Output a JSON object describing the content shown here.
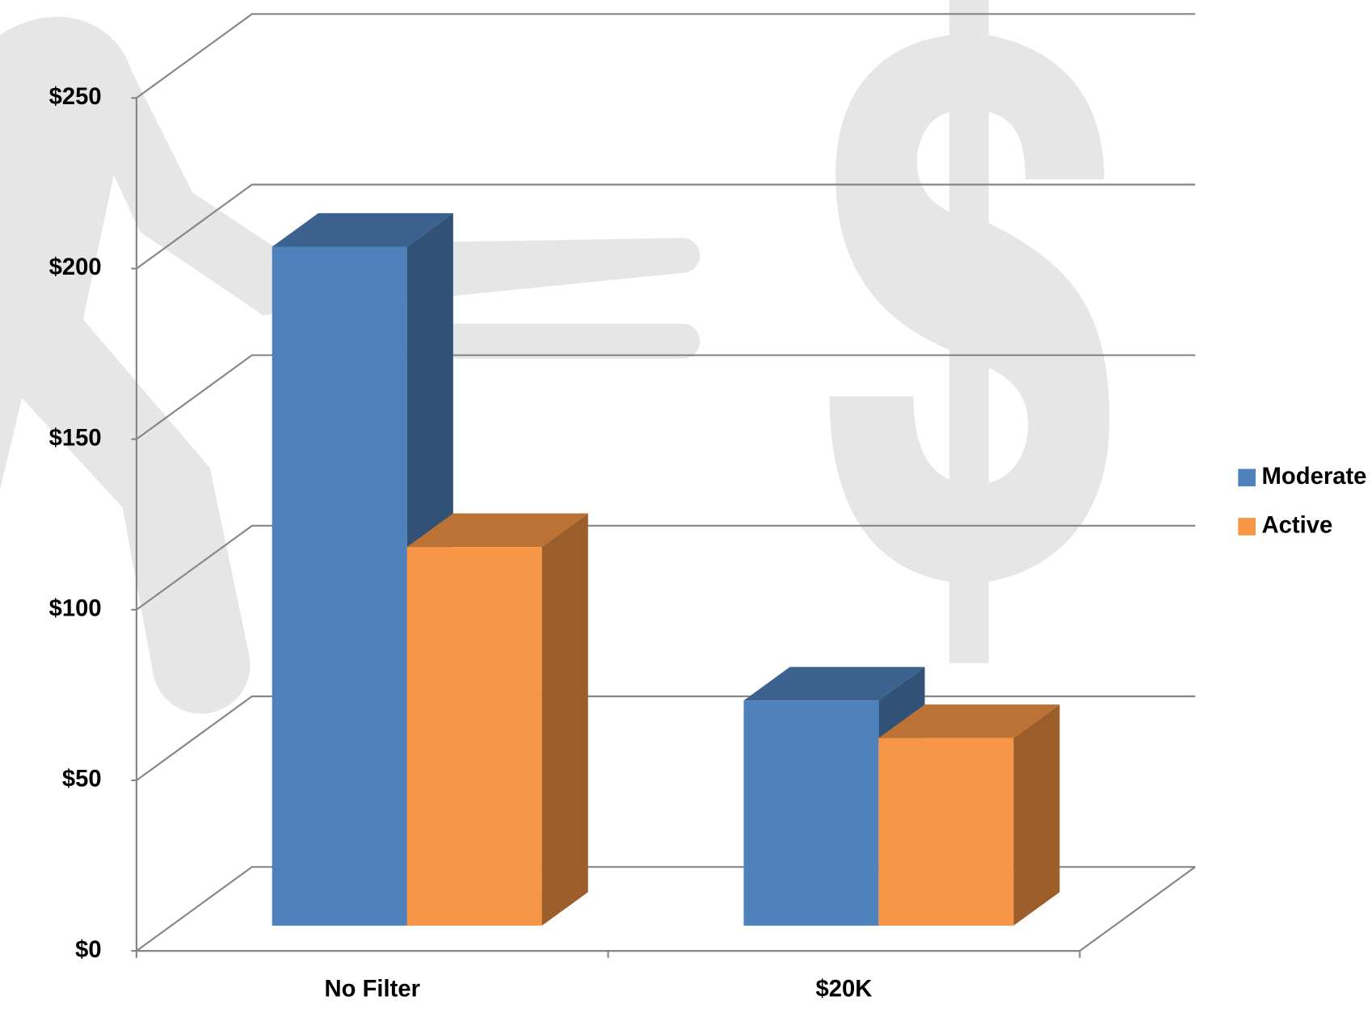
{
  "chart_data": {
    "type": "bar3d",
    "categories": [
      "No Filter",
      "$20K"
    ],
    "series": [
      {
        "name": "Moderate",
        "color": "#4f81bd",
        "values": [
          199,
          66
        ]
      },
      {
        "name": "Active",
        "color": "#f79646",
        "values": [
          111,
          55
        ]
      }
    ],
    "ylim": [
      0,
      250
    ],
    "yticks": [
      {
        "value": 0,
        "label": "$0"
      },
      {
        "value": 50,
        "label": "$50"
      },
      {
        "value": 100,
        "label": "$100"
      },
      {
        "value": 150,
        "label": "$150"
      },
      {
        "value": 200,
        "label": "$200"
      },
      {
        "value": 250,
        "label": "$250"
      }
    ],
    "grid": true,
    "legend": "right"
  }
}
